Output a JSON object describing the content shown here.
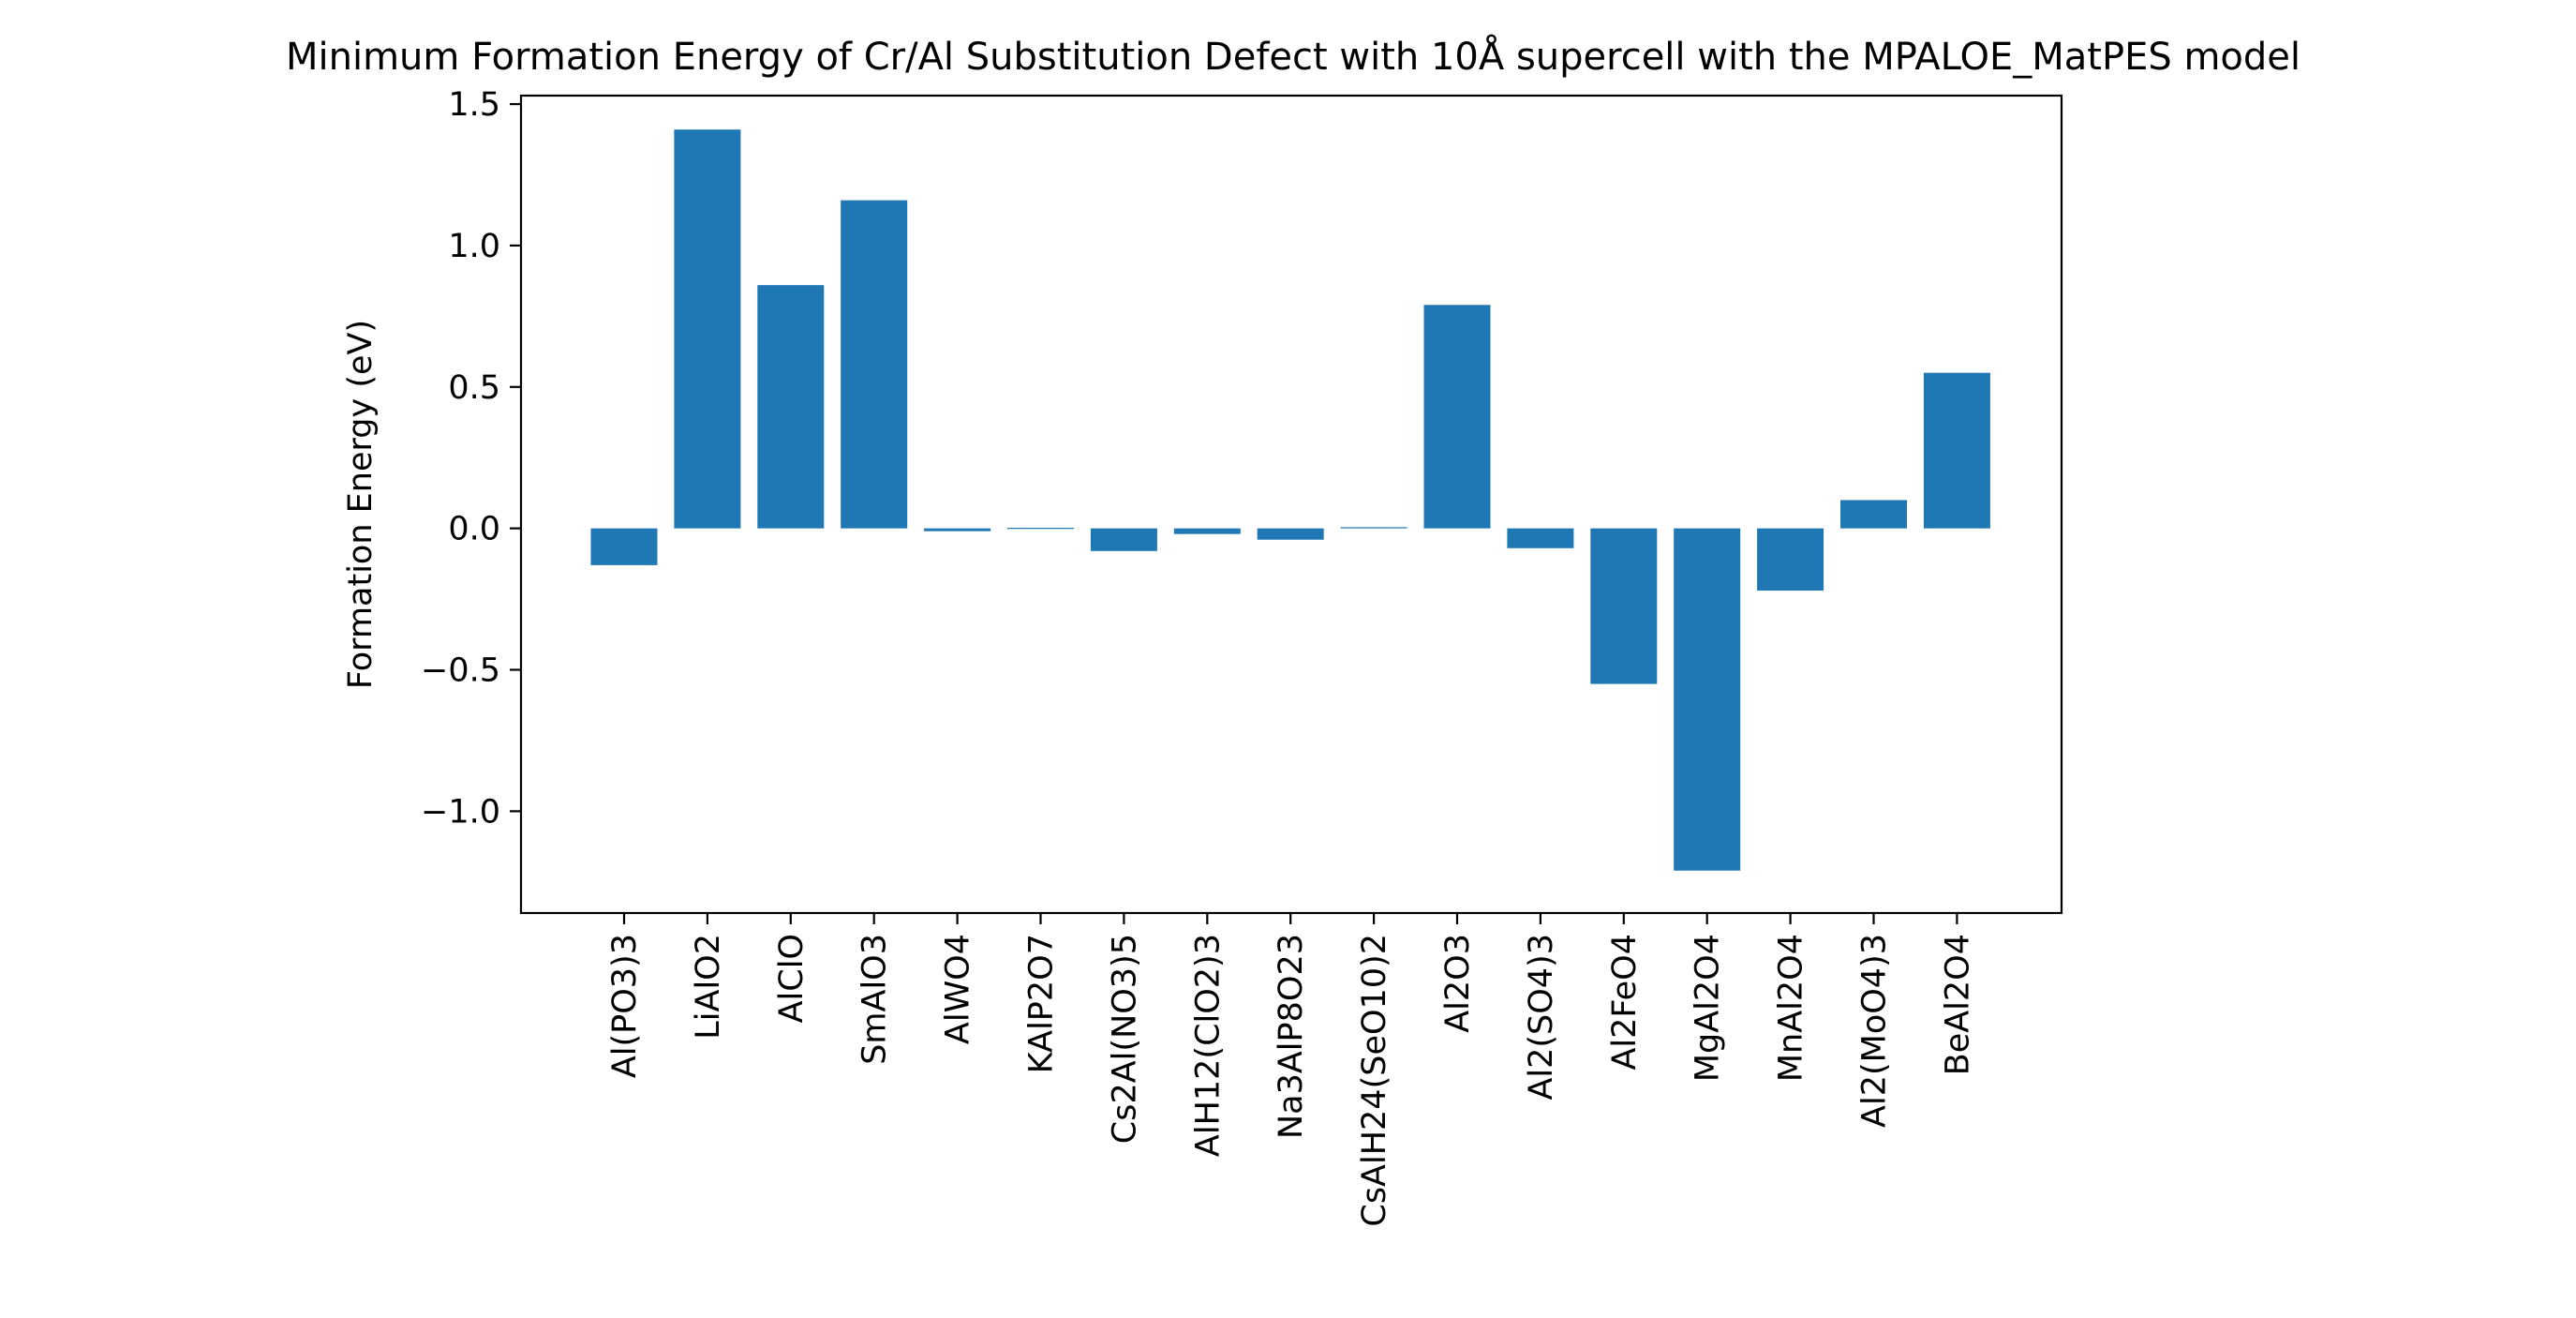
{
  "chart_data": {
    "type": "bar",
    "title": "Minimum Formation Energy of Cr/Al Substitution Defect with 10Å supercell with the MPALOE_MatPES model",
    "xlabel": "",
    "ylabel": "Formation Energy (eV)",
    "ylim": [
      -1.36,
      1.53
    ],
    "yticks": [
      1.5,
      1.0,
      0.5,
      0.0,
      -0.5,
      -1.0
    ],
    "ytick_labels": [
      "1.5",
      "1.0",
      "0.5",
      "0.0",
      "−0.5",
      "−1.0"
    ],
    "grid": false,
    "bar_color": "#1f77b4",
    "categories": [
      "Al(PO3)3",
      "LiAlO2",
      "AlClO",
      "SmAlO3",
      "AlWO4",
      "KAlP2O7",
      "Cs2Al(NO3)5",
      "AlH12(ClO2)3",
      "Na3AlP8O23",
      "CsAlH24(SeO10)2",
      "Al2O3",
      "Al2(SO4)3",
      "Al2FeO4",
      "MgAl2O4",
      "MnAl2O4",
      "Al2(MoO4)3",
      "BeAl2O4"
    ],
    "values": [
      -0.13,
      1.41,
      0.86,
      1.16,
      -0.01,
      0.003,
      -0.08,
      -0.02,
      -0.04,
      0.004,
      0.79,
      -0.07,
      -0.55,
      -1.21,
      -0.22,
      0.1,
      0.55
    ]
  }
}
